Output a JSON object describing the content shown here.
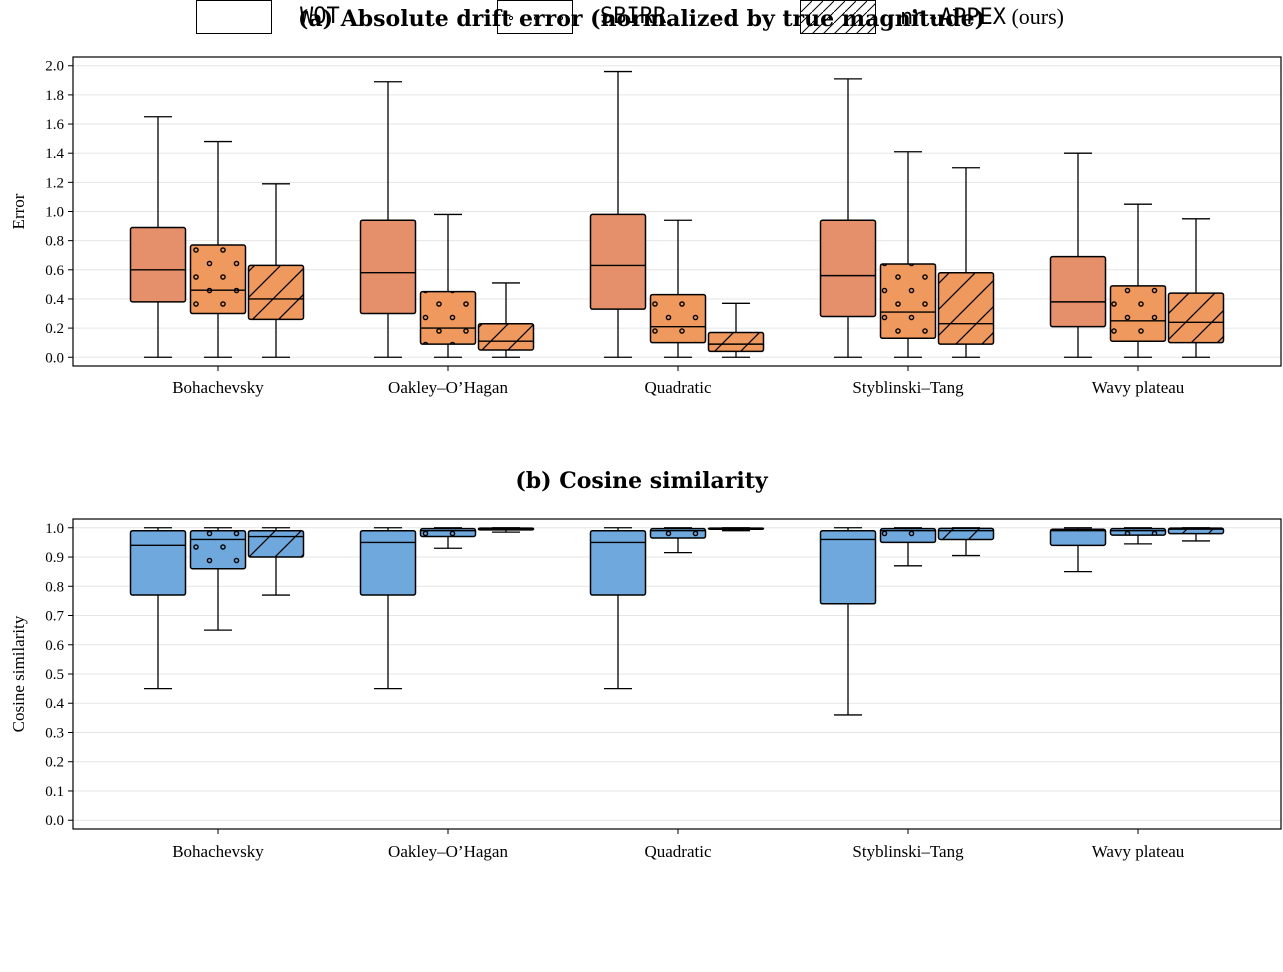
{
  "legend": {
    "items": [
      {
        "name": "WOT",
        "suffix": "",
        "hatch": "none"
      },
      {
        "name": "SBIRR",
        "suffix": "",
        "hatch": "dots"
      },
      {
        "name": "nn-APPEX",
        "suffix": " (ours)",
        "hatch": "slash"
      }
    ]
  },
  "colors": {
    "orange_plain": "#E5906A",
    "orange_hatched": "#F0995E",
    "blue": "#6FA8DC",
    "edge": "#000000",
    "grid": "#e6e6e6"
  },
  "chart_data": [
    {
      "type": "box",
      "title": "(a) Absolute drift error (normalized by true magnitude)",
      "xlabel": "",
      "ylabel": "Error",
      "ylim": [
        -0.06,
        2.06
      ],
      "yticks": [
        0.0,
        0.2,
        0.4,
        0.6,
        0.8,
        1.0,
        1.2,
        1.4,
        1.6,
        1.8,
        2.0
      ],
      "ytick_labels": [
        "0.0",
        "0.2",
        "0.4",
        "0.6",
        "0.8",
        "1.0",
        "1.2",
        "1.4",
        "1.6",
        "1.8",
        "2.0"
      ],
      "grid": "horizontal",
      "categories": [
        "Bohachevsky",
        "Oakley–O’Hagan",
        "Quadratic",
        "Styblinski–Tang",
        "Wavy plateau"
      ],
      "series": [
        {
          "name": "WOT",
          "hatch": "none",
          "color": "#E5906A",
          "boxes": [
            {
              "whislo": 0.0,
              "q1": 0.38,
              "med": 0.6,
              "q3": 0.89,
              "whishi": 1.65
            },
            {
              "whislo": 0.0,
              "q1": 0.3,
              "med": 0.58,
              "q3": 0.94,
              "whishi": 1.89
            },
            {
              "whislo": 0.0,
              "q1": 0.33,
              "med": 0.63,
              "q3": 0.98,
              "whishi": 1.96
            },
            {
              "whislo": 0.0,
              "q1": 0.28,
              "med": 0.56,
              "q3": 0.94,
              "whishi": 1.91
            },
            {
              "whislo": 0.0,
              "q1": 0.21,
              "med": 0.38,
              "q3": 0.69,
              "whishi": 1.4
            }
          ]
        },
        {
          "name": "SBIRR",
          "hatch": "dots",
          "color": "#F0995E",
          "boxes": [
            {
              "whislo": 0.0,
              "q1": 0.3,
              "med": 0.46,
              "q3": 0.77,
              "whishi": 1.48
            },
            {
              "whislo": 0.0,
              "q1": 0.09,
              "med": 0.2,
              "q3": 0.45,
              "whishi": 0.98
            },
            {
              "whislo": 0.0,
              "q1": 0.1,
              "med": 0.21,
              "q3": 0.43,
              "whishi": 0.94
            },
            {
              "whislo": 0.0,
              "q1": 0.13,
              "med": 0.31,
              "q3": 0.64,
              "whishi": 1.41
            },
            {
              "whislo": 0.0,
              "q1": 0.11,
              "med": 0.25,
              "q3": 0.49,
              "whishi": 1.05
            }
          ]
        },
        {
          "name": "nn-APPEX (ours)",
          "hatch": "slash",
          "color": "#F0995E",
          "boxes": [
            {
              "whislo": 0.0,
              "q1": 0.26,
              "med": 0.4,
              "q3": 0.63,
              "whishi": 1.19
            },
            {
              "whislo": 0.0,
              "q1": 0.05,
              "med": 0.11,
              "q3": 0.23,
              "whishi": 0.51
            },
            {
              "whislo": 0.0,
              "q1": 0.04,
              "med": 0.09,
              "q3": 0.17,
              "whishi": 0.37
            },
            {
              "whislo": 0.0,
              "q1": 0.09,
              "med": 0.23,
              "q3": 0.58,
              "whishi": 1.3
            },
            {
              "whislo": 0.0,
              "q1": 0.1,
              "med": 0.24,
              "q3": 0.44,
              "whishi": 0.95
            }
          ]
        }
      ]
    },
    {
      "type": "box",
      "title": "(b) Cosine similarity",
      "xlabel": "",
      "ylabel": "Cosine similarity",
      "ylim": [
        -0.03,
        1.03
      ],
      "yticks": [
        0.0,
        0.1,
        0.2,
        0.3,
        0.4,
        0.5,
        0.6,
        0.7,
        0.8,
        0.9,
        1.0
      ],
      "ytick_labels": [
        "0.0",
        "0.1",
        "0.2",
        "0.3",
        "0.4",
        "0.5",
        "0.6",
        "0.7",
        "0.8",
        "0.9",
        "1.0"
      ],
      "grid": "horizontal",
      "categories": [
        "Bohachevsky",
        "Oakley–O’Hagan",
        "Quadratic",
        "Styblinski–Tang",
        "Wavy plateau"
      ],
      "series": [
        {
          "name": "WOT",
          "hatch": "none",
          "color": "#6FA8DC",
          "boxes": [
            {
              "whislo": 0.45,
              "q1": 0.77,
              "med": 0.94,
              "q3": 0.99,
              "whishi": 1.0
            },
            {
              "whislo": 0.45,
              "q1": 0.77,
              "med": 0.95,
              "q3": 0.99,
              "whishi": 1.0
            },
            {
              "whislo": 0.45,
              "q1": 0.77,
              "med": 0.95,
              "q3": 0.99,
              "whishi": 1.0
            },
            {
              "whislo": 0.36,
              "q1": 0.74,
              "med": 0.96,
              "q3": 0.99,
              "whishi": 1.0
            },
            {
              "whislo": 0.85,
              "q1": 0.94,
              "med": 0.99,
              "q3": 0.995,
              "whishi": 1.0
            }
          ]
        },
        {
          "name": "SBIRR",
          "hatch": "dots",
          "color": "#6FA8DC",
          "boxes": [
            {
              "whislo": 0.65,
              "q1": 0.86,
              "med": 0.96,
              "q3": 0.99,
              "whishi": 1.0
            },
            {
              "whislo": 0.93,
              "q1": 0.97,
              "med": 0.99,
              "q3": 0.997,
              "whishi": 1.0
            },
            {
              "whislo": 0.915,
              "q1": 0.965,
              "med": 0.99,
              "q3": 0.997,
              "whishi": 1.0
            },
            {
              "whislo": 0.87,
              "q1": 0.95,
              "med": 0.99,
              "q3": 0.997,
              "whishi": 1.0
            },
            {
              "whislo": 0.945,
              "q1": 0.975,
              "med": 0.99,
              "q3": 0.997,
              "whishi": 1.0
            }
          ]
        },
        {
          "name": "nn-APPEX (ours)",
          "hatch": "slash",
          "color": "#6FA8DC",
          "boxes": [
            {
              "whislo": 0.77,
              "q1": 0.9,
              "med": 0.97,
              "q3": 0.99,
              "whishi": 1.0
            },
            {
              "whislo": 0.985,
              "q1": 0.993,
              "med": 0.997,
              "q3": 0.999,
              "whishi": 1.0
            },
            {
              "whislo": 0.99,
              "q1": 0.995,
              "med": 0.998,
              "q3": 0.999,
              "whishi": 1.0
            },
            {
              "whislo": 0.905,
              "q1": 0.96,
              "med": 0.99,
              "q3": 0.998,
              "whishi": 1.0
            },
            {
              "whislo": 0.955,
              "q1": 0.98,
              "med": 0.995,
              "q3": 0.999,
              "whishi": 1.0
            }
          ]
        }
      ]
    }
  ]
}
